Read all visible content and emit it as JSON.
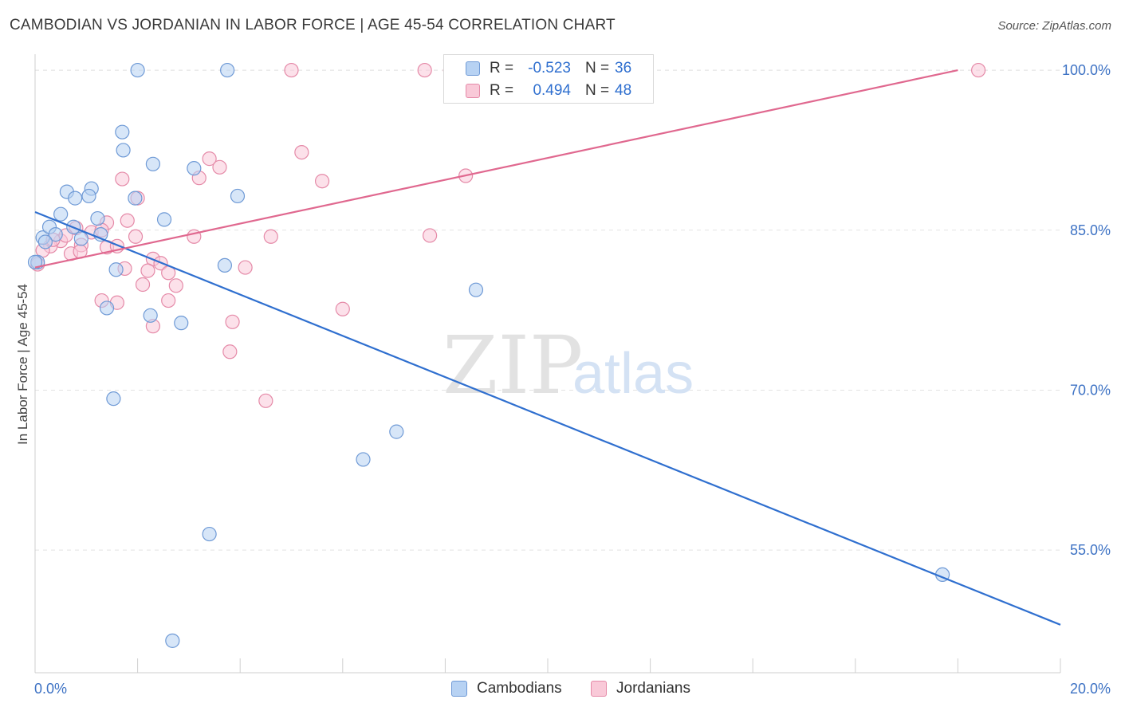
{
  "header": {
    "title": "CAMBODIAN VS JORDANIAN IN LABOR FORCE | AGE 45-54 CORRELATION CHART",
    "source": "Source: ZipAtlas.com"
  },
  "watermark": {
    "zip": "ZIP",
    "atlas": "atlas"
  },
  "legend": {
    "rows": [
      {
        "r_label": "R =",
        "r_value": "-0.523",
        "n_label": "N =",
        "n_value": "36"
      },
      {
        "r_label": "R =",
        "r_value": "0.494",
        "n_label": "N =",
        "n_value": "48"
      }
    ],
    "bottom": [
      {
        "label": "Cambodians"
      },
      {
        "label": "Jordanians"
      }
    ]
  },
  "colors": {
    "cambodians_fill": "#b7d2f3",
    "cambodians_stroke": "#6f9ad6",
    "cambodians_line": "#2f6fcf",
    "jordanians_fill": "#f9c9d8",
    "jordanians_stroke": "#e58aa8",
    "jordanians_line": "#e0688f",
    "axis_text": "#3d72c4",
    "grid": "#e3e3e3"
  },
  "chart_data": {
    "type": "scatter",
    "title": "CAMBODIAN VS JORDANIAN IN LABOR FORCE | AGE 45-54 CORRELATION CHART",
    "xlabel": "",
    "ylabel": "In Labor Force | Age 45-54",
    "xlim": [
      0,
      20
    ],
    "ylim": [
      43.5,
      101.5
    ],
    "x_ticks": [
      0,
      20
    ],
    "x_tick_labels": [
      "0.0%",
      "20.0%"
    ],
    "y_ticks": [
      55,
      70,
      85,
      100
    ],
    "y_tick_labels": [
      "55.0%",
      "70.0%",
      "85.0%",
      "100.0%"
    ],
    "grid": true,
    "legend_position": "top-center",
    "series": [
      {
        "name": "Cambodians",
        "trend": {
          "x": [
            0,
            20
          ],
          "y": [
            86.7,
            48.0
          ]
        },
        "points": [
          [
            2.0,
            100.0
          ],
          [
            3.75,
            100.0
          ],
          [
            1.7,
            94.2
          ],
          [
            1.72,
            92.5
          ],
          [
            2.3,
            91.2
          ],
          [
            3.1,
            90.8
          ],
          [
            0.62,
            88.6
          ],
          [
            1.1,
            88.9
          ],
          [
            0.78,
            88.0
          ],
          [
            1.05,
            88.2
          ],
          [
            1.95,
            88.0
          ],
          [
            3.95,
            88.2
          ],
          [
            0.5,
            86.5
          ],
          [
            1.22,
            86.1
          ],
          [
            2.52,
            86.0
          ],
          [
            0.15,
            84.3
          ],
          [
            0.28,
            85.3
          ],
          [
            0.4,
            84.6
          ],
          [
            0.75,
            85.3
          ],
          [
            0.9,
            84.2
          ],
          [
            1.28,
            84.6
          ],
          [
            0.2,
            83.9
          ],
          [
            0.05,
            82.0
          ],
          [
            1.58,
            81.3
          ],
          [
            3.7,
            81.7
          ],
          [
            8.6,
            79.4
          ],
          [
            1.4,
            77.7
          ],
          [
            2.25,
            77.0
          ],
          [
            2.85,
            76.3
          ],
          [
            1.53,
            69.2
          ],
          [
            7.05,
            66.1
          ],
          [
            6.4,
            63.5
          ],
          [
            3.4,
            56.5
          ],
          [
            17.7,
            52.7
          ],
          [
            2.68,
            46.5
          ],
          [
            0.0,
            82.0
          ]
        ]
      },
      {
        "name": "Jordanians",
        "trend": {
          "x": [
            0,
            18
          ],
          "y": [
            81.5,
            100.0
          ]
        },
        "points": [
          [
            5.0,
            100.0
          ],
          [
            7.6,
            100.0
          ],
          [
            8.1,
            100.0
          ],
          [
            18.4,
            100.0
          ],
          [
            5.2,
            92.3
          ],
          [
            3.4,
            91.7
          ],
          [
            3.6,
            90.9
          ],
          [
            1.7,
            89.8
          ],
          [
            3.2,
            89.9
          ],
          [
            5.6,
            89.6
          ],
          [
            8.4,
            90.1
          ],
          [
            2.0,
            88.0
          ],
          [
            1.8,
            85.9
          ],
          [
            1.4,
            85.7
          ],
          [
            0.8,
            85.2
          ],
          [
            0.5,
            84.0
          ],
          [
            0.9,
            83.6
          ],
          [
            1.1,
            84.8
          ],
          [
            1.3,
            85.0
          ],
          [
            1.96,
            84.4
          ],
          [
            3.1,
            84.4
          ],
          [
            4.6,
            84.4
          ],
          [
            7.7,
            84.5
          ],
          [
            0.3,
            83.5
          ],
          [
            1.4,
            83.4
          ],
          [
            1.6,
            83.5
          ],
          [
            0.7,
            82.8
          ],
          [
            0.88,
            83.0
          ],
          [
            2.3,
            82.3
          ],
          [
            2.45,
            81.9
          ],
          [
            0.05,
            81.8
          ],
          [
            1.75,
            81.4
          ],
          [
            2.2,
            81.2
          ],
          [
            2.6,
            81.0
          ],
          [
            4.1,
            81.5
          ],
          [
            2.1,
            79.9
          ],
          [
            2.75,
            79.8
          ],
          [
            1.3,
            78.4
          ],
          [
            1.6,
            78.2
          ],
          [
            2.6,
            78.4
          ],
          [
            6.0,
            77.6
          ],
          [
            3.85,
            76.4
          ],
          [
            2.3,
            76.0
          ],
          [
            3.8,
            73.6
          ],
          [
            4.5,
            69.0
          ],
          [
            0.15,
            83.1
          ],
          [
            0.6,
            84.5
          ],
          [
            0.35,
            84.1
          ]
        ]
      }
    ]
  }
}
